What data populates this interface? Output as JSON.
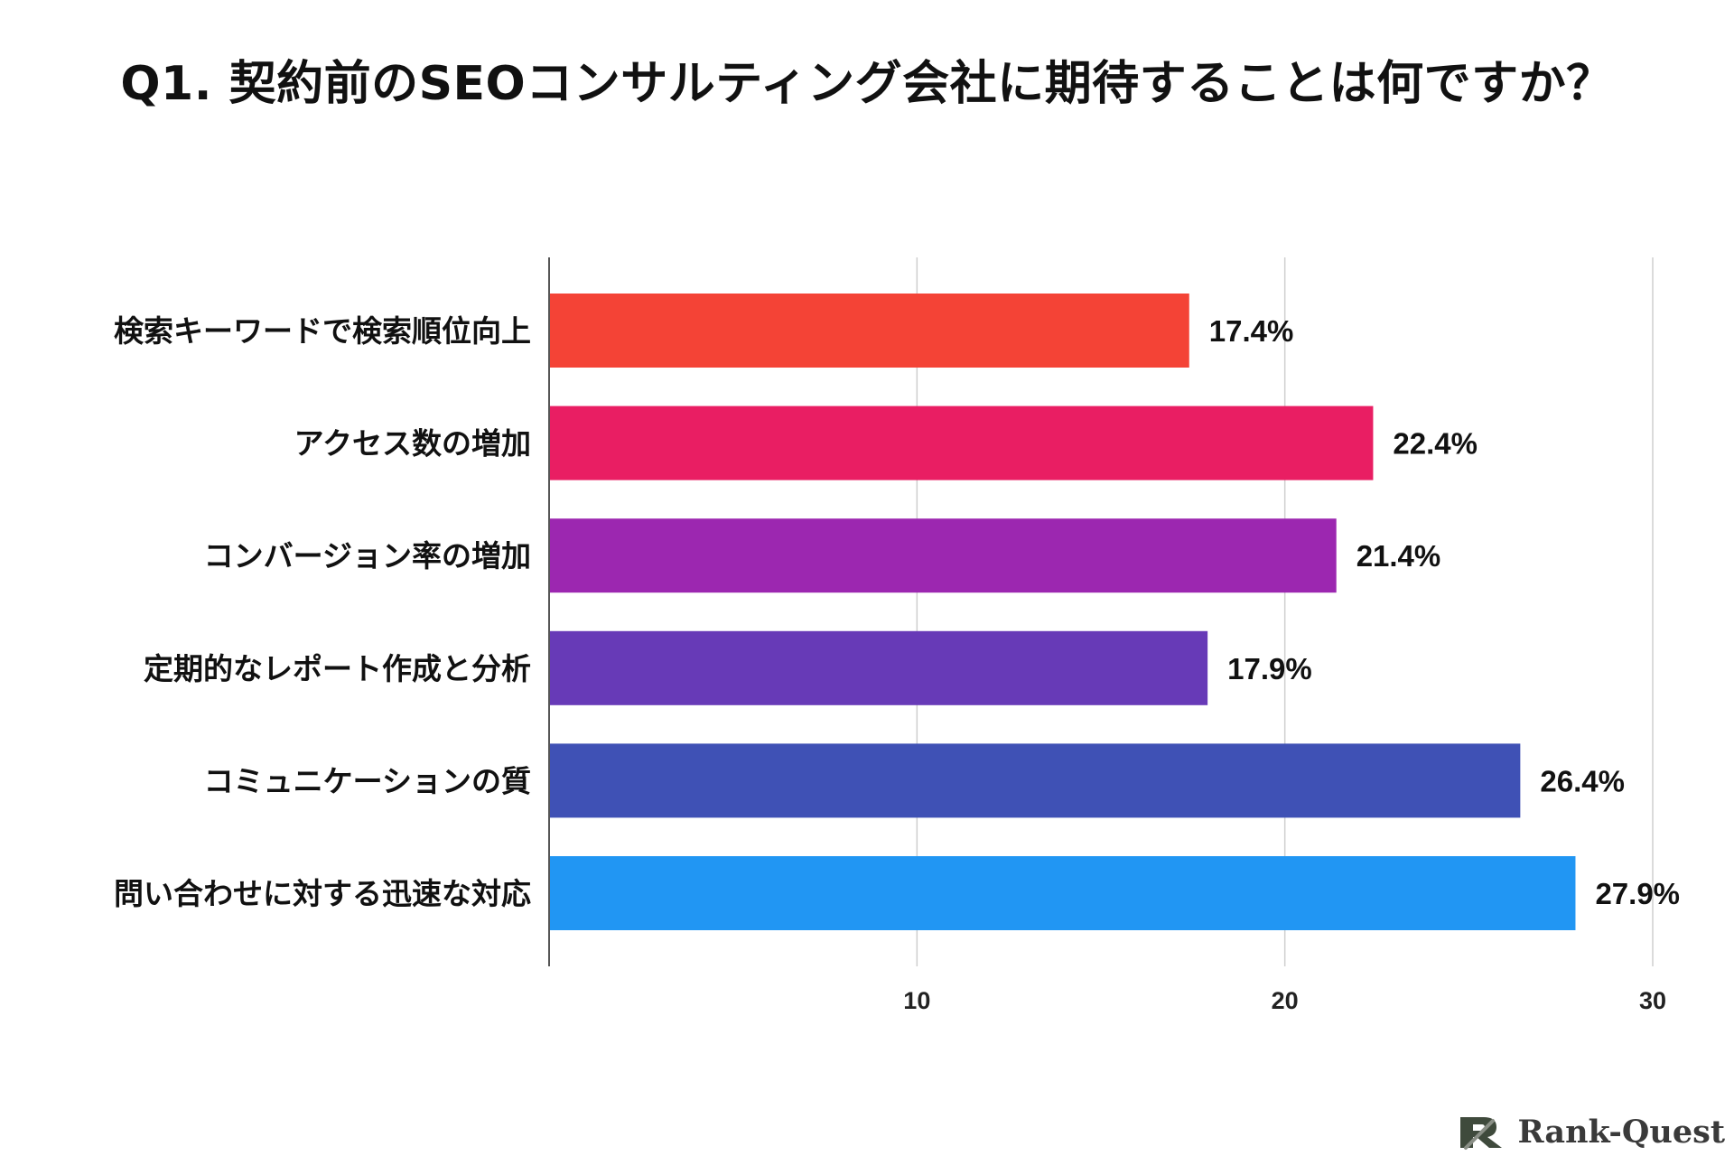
{
  "chart_data": {
    "type": "bar",
    "orientation": "horizontal",
    "title": "Q1. 契約前のSEOコンサルティング会社に期待することは何ですか？",
    "categories": [
      "検索キーワードで検索順位向上",
      "アクセス数の増加",
      "コンバージョン率の増加",
      "定期的なレポート作成と分析",
      "コミュニケーションの質",
      "問い合わせに対する迅速な対応"
    ],
    "values": [
      17.4,
      22.4,
      21.4,
      17.9,
      26.4,
      27.9
    ],
    "value_labels": [
      "17.4%",
      "22.4%",
      "21.4%",
      "17.9%",
      "26.4%",
      "27.9%"
    ],
    "colors": [
      "#f44336",
      "#e91e63",
      "#9c27b0",
      "#673ab7",
      "#3f51b5",
      "#2196f3"
    ],
    "xticks": [
      10,
      20,
      30
    ],
    "xlim": [
      0,
      30
    ],
    "grid": true,
    "legend": "none"
  },
  "brand": {
    "name": "Rank-Quest",
    "logo_icon": "rank-quest-logo-icon"
  }
}
